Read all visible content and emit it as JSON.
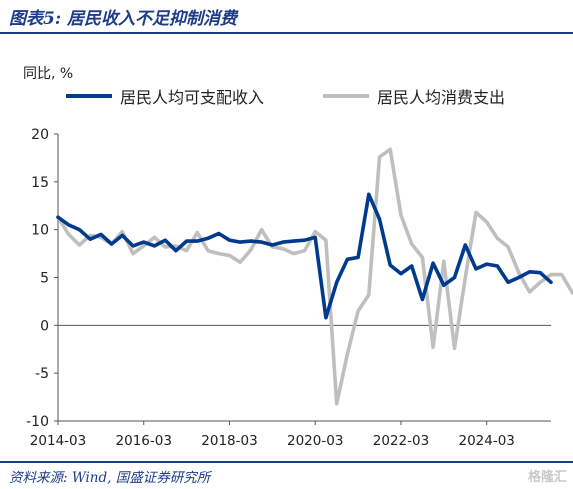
{
  "figure_title": "图表5: 居民收入不足抑制消费",
  "source_note": "资料来源: Wind, 国盛证券研究所",
  "watermark_text": "格隆汇",
  "chart_data": {
    "type": "line",
    "ylabel": "同比, %",
    "ylim": [
      -10,
      20
    ],
    "yticks": [
      -10,
      -5,
      0,
      5,
      10,
      15,
      20
    ],
    "xticks": [
      "2014-03",
      "2016-03",
      "2018-03",
      "2020-03",
      "2022-03",
      "2024-03"
    ],
    "x_range": [
      "2014-03",
      "2025-09"
    ],
    "grid": false,
    "legend_position": "top",
    "series": [
      {
        "name": "居民人均可支配收入",
        "color": "#003a8c",
        "points": [
          [
            "2014-03",
            11.3
          ],
          [
            "2014-06",
            10.5
          ],
          [
            "2014-09",
            10.0
          ],
          [
            "2014-12",
            9.0
          ],
          [
            "2015-03",
            9.5
          ],
          [
            "2015-06",
            8.5
          ],
          [
            "2015-09",
            9.4
          ],
          [
            "2015-12",
            8.3
          ],
          [
            "2016-03",
            8.7
          ],
          [
            "2016-06",
            8.3
          ],
          [
            "2016-09",
            8.9
          ],
          [
            "2016-12",
            7.8
          ],
          [
            "2017-03",
            8.8
          ],
          [
            "2017-06",
            8.8
          ],
          [
            "2017-09",
            9.1
          ],
          [
            "2017-12",
            9.6
          ],
          [
            "2018-03",
            8.9
          ],
          [
            "2018-06",
            8.7
          ],
          [
            "2018-09",
            8.8
          ],
          [
            "2018-12",
            8.7
          ],
          [
            "2019-03",
            8.4
          ],
          [
            "2019-06",
            8.7
          ],
          [
            "2019-09",
            8.8
          ],
          [
            "2019-12",
            8.9
          ],
          [
            "2020-03",
            9.2
          ],
          [
            "2020-06",
            0.8
          ],
          [
            "2020-09",
            4.5
          ],
          [
            "2020-12",
            6.9
          ],
          [
            "2021-03",
            7.1
          ],
          [
            "2021-06",
            13.7
          ],
          [
            "2021-09",
            11.1
          ],
          [
            "2021-12",
            6.3
          ],
          [
            "2022-03",
            5.4
          ],
          [
            "2022-06",
            6.2
          ],
          [
            "2022-09",
            2.7
          ],
          [
            "2022-12",
            6.5
          ],
          [
            "2023-03",
            4.2
          ],
          [
            "2023-06",
            5.0
          ],
          [
            "2023-09",
            8.4
          ],
          [
            "2023-12",
            5.9
          ],
          [
            "2024-03",
            6.4
          ],
          [
            "2024-06",
            6.2
          ],
          [
            "2024-09",
            4.5
          ],
          [
            "2024-12",
            5.0
          ],
          [
            "2025-03",
            5.6
          ],
          [
            "2025-06",
            5.5
          ],
          [
            "2025-09",
            4.5
          ]
        ]
      },
      {
        "name": "居民人均消费支出",
        "color": "#bfbfbf",
        "points": [
          [
            "2014-03",
            11.3
          ],
          [
            "2014-06",
            9.5
          ],
          [
            "2014-09",
            8.4
          ],
          [
            "2014-12",
            9.4
          ],
          [
            "2015-03",
            9.2
          ],
          [
            "2015-06",
            8.5
          ],
          [
            "2015-09",
            9.8
          ],
          [
            "2015-12",
            7.5
          ],
          [
            "2016-03",
            8.3
          ],
          [
            "2016-06",
            9.2
          ],
          [
            "2016-09",
            8.2
          ],
          [
            "2016-12",
            8.3
          ],
          [
            "2017-03",
            7.8
          ],
          [
            "2017-06",
            9.7
          ],
          [
            "2017-09",
            7.8
          ],
          [
            "2017-12",
            7.5
          ],
          [
            "2018-03",
            7.3
          ],
          [
            "2018-06",
            6.6
          ],
          [
            "2018-09",
            7.9
          ],
          [
            "2018-12",
            10.0
          ],
          [
            "2019-03",
            8.2
          ],
          [
            "2019-06",
            8.0
          ],
          [
            "2019-09",
            7.5
          ],
          [
            "2019-12",
            7.8
          ],
          [
            "2020-03",
            9.8
          ],
          [
            "2020-06",
            8.9
          ],
          [
            "2020-09",
            -8.2
          ],
          [
            "2020-12",
            -3.0
          ],
          [
            "2021-03",
            1.5
          ],
          [
            "2021-06",
            3.2
          ],
          [
            "2021-09",
            17.6
          ],
          [
            "2021-12",
            18.4
          ],
          [
            "2022-03",
            11.5
          ],
          [
            "2022-06",
            8.5
          ],
          [
            "2022-09",
            7.1
          ],
          [
            "2022-12",
            -2.3
          ],
          [
            "2023-03",
            6.7
          ],
          [
            "2023-06",
            -2.4
          ],
          [
            "2023-09",
            5.0
          ],
          [
            "2023-12",
            11.8
          ],
          [
            "2024-03",
            10.8
          ],
          [
            "2024-06",
            9.1
          ],
          [
            "2024-09",
            8.2
          ],
          [
            "2024-12",
            5.5
          ],
          [
            "2025-03",
            3.5
          ],
          [
            "2025-06",
            4.5
          ],
          [
            "2025-09",
            5.3
          ],
          [
            "2025-12",
            5.3
          ],
          [
            "2026-03",
            3.4
          ]
        ]
      }
    ]
  }
}
